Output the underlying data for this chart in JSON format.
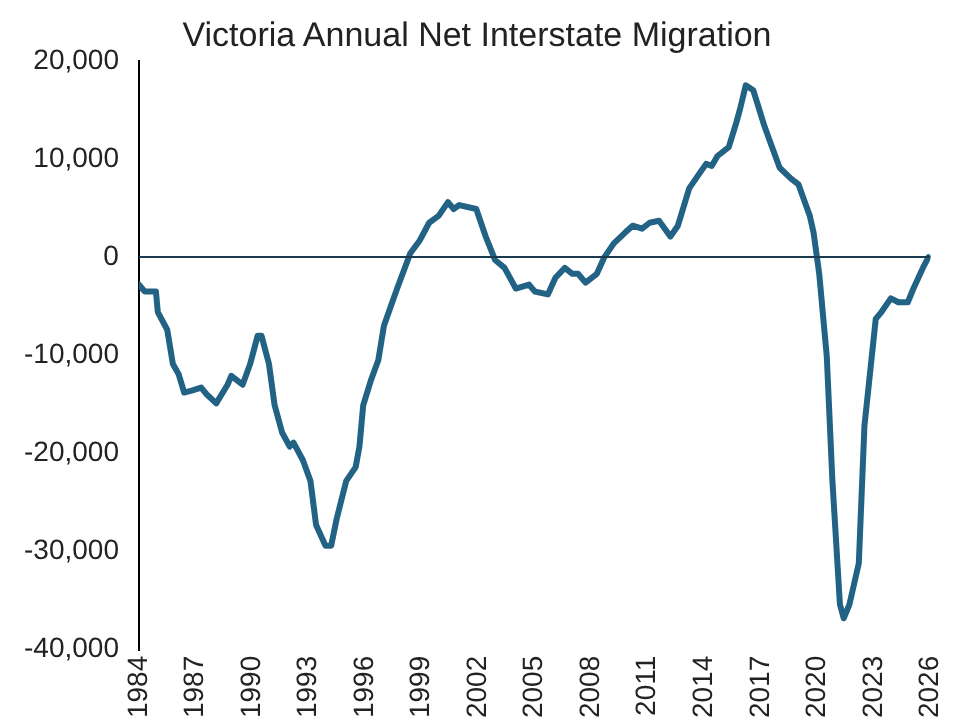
{
  "chart_data": {
    "type": "line",
    "title": "Victoria Annual Net Interstate Migration",
    "x": [
      1984,
      1984.3,
      1984.9,
      1985.0,
      1985.5,
      1985.8,
      1986.1,
      1986.4,
      1986.8,
      1987.3,
      1987.6,
      1988.1,
      1988.7,
      1988.9,
      1989.5,
      1989.9,
      1990.3,
      1990.5,
      1990.9,
      1991.2,
      1991.6,
      1992.0,
      1992.2,
      1992.7,
      1993.1,
      1993.4,
      1993.9,
      1994.2,
      1994.5,
      1995.0,
      1995.5,
      1995.7,
      1995.9,
      1996.3,
      1996.7,
      1997.0,
      1997.7,
      1998.4,
      1998.9,
      1999.4,
      1999.9,
      2000.4,
      2000.7,
      2001.0,
      2001.9,
      2002.4,
      2002.9,
      2003.4,
      2004.0,
      2004.7,
      2005.0,
      2005.7,
      2006.1,
      2006.6,
      2007.0,
      2007.3,
      2007.7,
      2008.3,
      2008.7,
      2009.2,
      2009.8,
      2010.2,
      2010.7,
      2011.1,
      2011.6,
      2012.2,
      2012.6,
      2013.2,
      2013.7,
      2014.1,
      2014.4,
      2014.7,
      2015.3,
      2015.7,
      2015.9,
      2016.2,
      2016.6,
      2017.2,
      2017.6,
      2018.0,
      2018.6,
      2019.0,
      2019.6,
      2019.8,
      2020.1,
      2020.5,
      2020.8,
      2021.2,
      2021.4,
      2021.7,
      2022.2,
      2022.5,
      2023.1,
      2023.4,
      2023.9,
      2024.3,
      2024.8,
      2025.1,
      2025.6,
      2025.9
    ],
    "series": [
      {
        "color": "#226285",
        "values": [
          -2800,
          -3500,
          -3500,
          -5600,
          -7400,
          -10900,
          -11900,
          -13800,
          -13600,
          -13300,
          -14000,
          -14900,
          -13000,
          -12100,
          -13000,
          -10900,
          -8000,
          -8000,
          -10900,
          -15100,
          -17900,
          -19300,
          -18900,
          -20700,
          -22800,
          -27300,
          -29400,
          -29400,
          -26600,
          -22800,
          -21400,
          -19300,
          -15100,
          -12600,
          -10500,
          -7000,
          -3200,
          400,
          1700,
          3500,
          4200,
          5600,
          4900,
          5300,
          4900,
          2100,
          -300,
          -1100,
          -3200,
          -2800,
          -3500,
          -3800,
          -2100,
          -1100,
          -1700,
          -1700,
          -2600,
          -1700,
          0,
          1400,
          2500,
          3200,
          2900,
          3500,
          3700,
          2100,
          3200,
          7000,
          8400,
          9500,
          9300,
          10300,
          11200,
          13700,
          15100,
          17500,
          17000,
          13300,
          11200,
          9100,
          8000,
          7400,
          4200,
          2500,
          -1700,
          -10100,
          -22800,
          -35400,
          -36800,
          -35400,
          -31200,
          -17200,
          -6300,
          -5600,
          -4200,
          -4600,
          -4600,
          -3200,
          -1100,
          0
        ]
      }
    ],
    "xlim": [
      1984,
      2026
    ],
    "xticks": [
      1984,
      1987,
      1990,
      1993,
      1996,
      1999,
      2002,
      2005,
      2008,
      2011,
      2014,
      2017,
      2020,
      2023,
      2026
    ],
    "ylim": [
      -40000,
      20000
    ],
    "yticks": [
      {
        "value": -40000,
        "label": "-40,000"
      },
      {
        "value": -30000,
        "label": "-30,000"
      },
      {
        "value": -20000,
        "label": "-20,000"
      },
      {
        "value": -10000,
        "label": "-10,000"
      },
      {
        "value": 0,
        "label": "0"
      },
      {
        "value": 10000,
        "label": "10,000"
      },
      {
        "value": 20000,
        "label": "20,000"
      }
    ],
    "ref_lines": [
      {
        "axis": "y",
        "value": 0,
        "color": "#1b3a4f"
      }
    ],
    "grid": false,
    "legend": false,
    "marker": "none",
    "line_style": "solid"
  }
}
